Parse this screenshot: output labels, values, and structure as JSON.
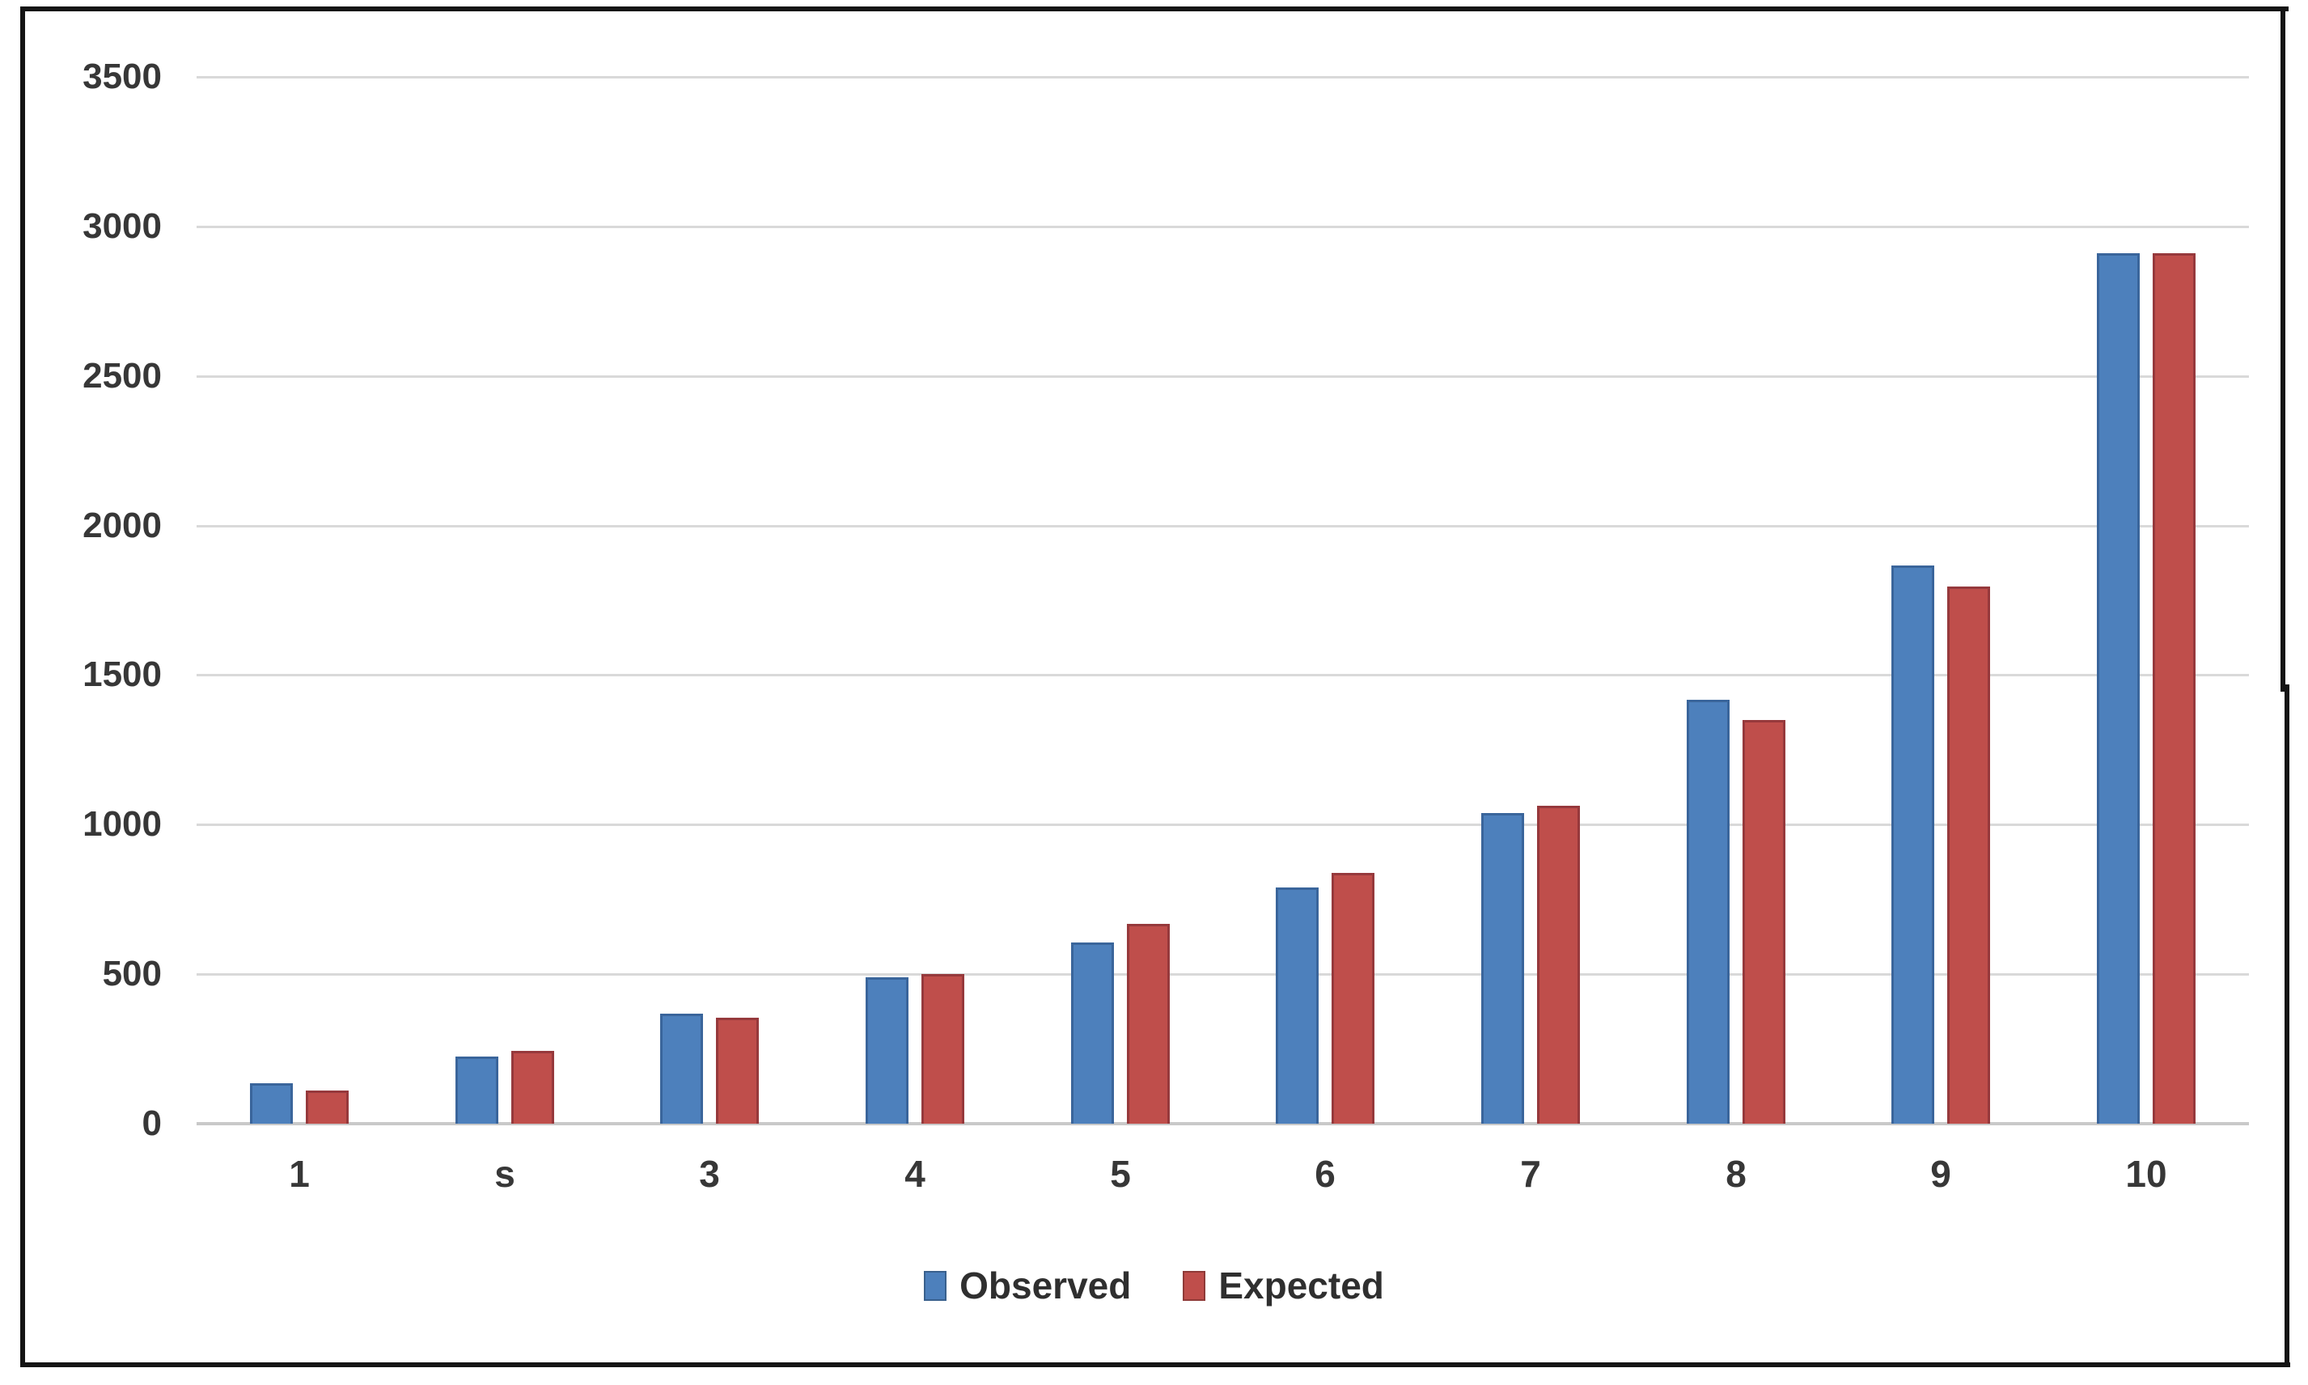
{
  "chart_data": {
    "type": "bar",
    "title": "",
    "categories": [
      "1",
      "s",
      "3",
      "4",
      "5",
      "6",
      "7",
      "8",
      "9",
      "10"
    ],
    "series": [
      {
        "name": "Observed",
        "color": "#4d80bc",
        "border_color": "#3a659b",
        "values": [
          135,
          225,
          367,
          489,
          607,
          790,
          1038,
          1417,
          1866,
          2910
        ]
      },
      {
        "name": "Expected",
        "color": "#bf4e4b",
        "border_color": "#96393c",
        "values": [
          110,
          243,
          354,
          500,
          669,
          838,
          1062,
          1350,
          1796,
          2910
        ]
      }
    ],
    "ylim": [
      0,
      3500
    ],
    "ytick_step": 500,
    "ytick_labels": [
      "0",
      "500",
      "1000",
      "1500",
      "2000",
      "2500",
      "3000",
      "3500"
    ],
    "grid": "horizontal",
    "gridline_color": "#d9d9d9",
    "axis_line_color": "#c9c9c9",
    "tick_label_color": "#373737",
    "legend_position": "bottom",
    "legend": [
      {
        "label": "Observed",
        "color": "#4d80bc"
      },
      {
        "label": "Expected",
        "color": "#bf4e4b"
      }
    ]
  },
  "frame": {
    "border_color": "#141414"
  }
}
